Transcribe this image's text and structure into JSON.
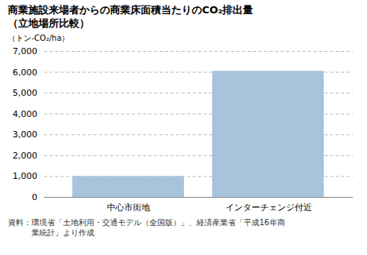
{
  "chart_data": {
    "type": "bar",
    "title": "商業施設来場者からの商業床面積当たりのCO₂排出量",
    "subtitle": "（立地場所比較）",
    "ylabel": "（トン-CO₂/ha）",
    "categories": [
      "中心市街地",
      "インターチェンジ付近"
    ],
    "values": [
      1000,
      6050
    ],
    "color": "#a8c4dc",
    "ylim": [
      0,
      7000
    ],
    "yticks": [
      0,
      {
        "value": 1000,
        "label": "1,000"
      },
      {
        "value": 2000,
        "label": "2,000"
      },
      {
        "value": 3000,
        "label": "3,000"
      },
      {
        "value": 4000,
        "label": "4,000"
      },
      {
        "value": 5000,
        "label": "5,000"
      },
      {
        "value": 6000,
        "label": "6,000"
      },
      {
        "value": 7000,
        "label": "7,000"
      }
    ],
    "grid": true,
    "footnotes": [
      "資料：環境省「土地利用・交通モデル（全国版）」、経済産業省「平成16年商",
      "業統計」より作成"
    ]
  }
}
